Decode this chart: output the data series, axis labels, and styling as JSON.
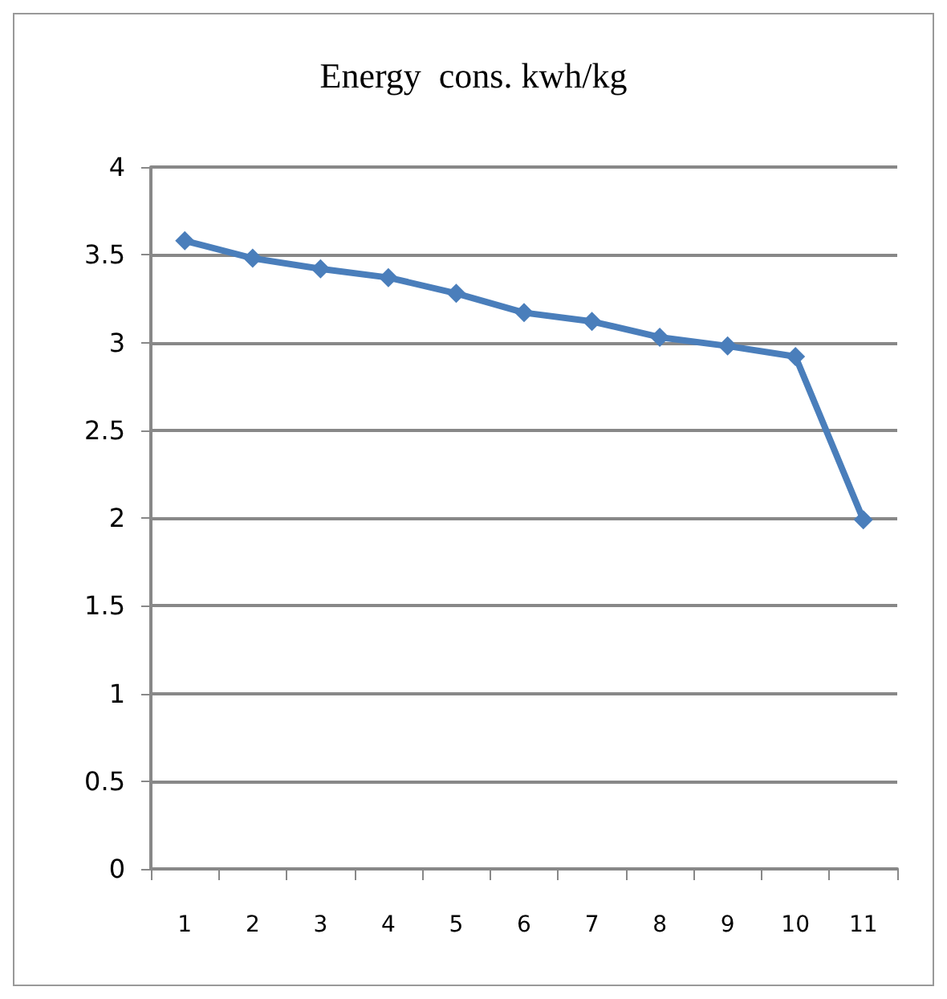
{
  "chart_data": {
    "type": "line",
    "title": "Energy  cons. kwh/kg",
    "categories": [
      "1",
      "2",
      "3",
      "4",
      "5",
      "6",
      "7",
      "8",
      "9",
      "10",
      "11"
    ],
    "series": [
      {
        "color": "#4a7ebb",
        "values": [
          3.58,
          3.48,
          3.42,
          3.37,
          3.28,
          3.17,
          3.12,
          3.03,
          2.98,
          2.92,
          1.99
        ]
      }
    ],
    "ylim": [
      0,
      4
    ],
    "yticks": [
      0,
      0.5,
      1,
      1.5,
      2,
      2.5,
      3,
      3.5,
      4
    ],
    "grid": "y",
    "marker": "diamond",
    "line_style": "solid"
  }
}
